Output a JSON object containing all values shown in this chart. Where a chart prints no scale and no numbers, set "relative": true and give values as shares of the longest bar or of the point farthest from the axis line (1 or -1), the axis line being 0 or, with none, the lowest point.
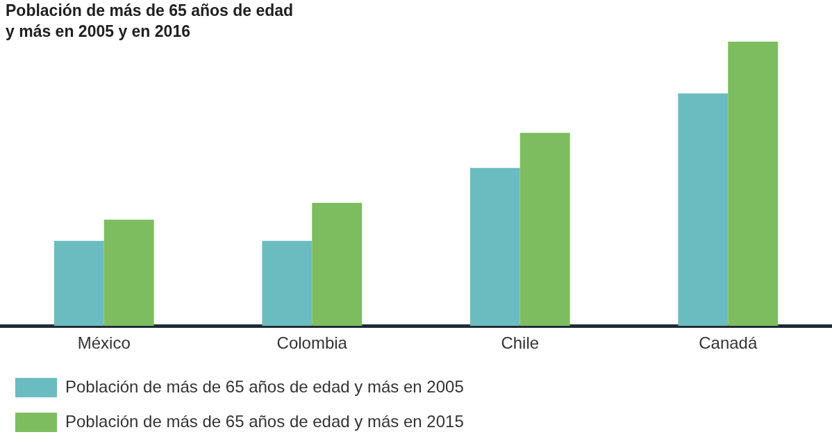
{
  "chart_data": {
    "type": "bar",
    "title": "Población de más de 65 años de edad\ny más en 2005 y en 2016",
    "relative": true,
    "categories": [
      "México",
      "Colombia",
      "Chile",
      "Canadá"
    ],
    "series": [
      {
        "name": "Población de más de 65 años de edad y más en 2005",
        "color": "#6bbcc0",
        "values": [
          0.299,
          0.299,
          0.556,
          0.818
        ]
      },
      {
        "name": "Población de más de 65 años de edad y más en 2015",
        "color": "#7dbd5f",
        "values": [
          0.374,
          0.433,
          0.679,
          1
        ]
      }
    ],
    "legend": "bottom",
    "grid": false
  }
}
